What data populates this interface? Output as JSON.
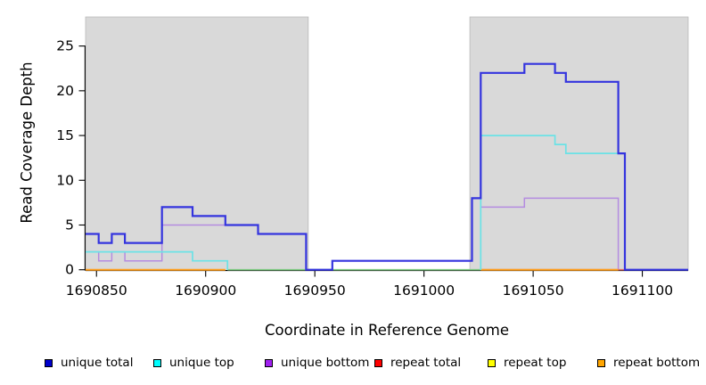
{
  "chart_data": {
    "type": "line",
    "subtype": "step",
    "title": "",
    "xlabel": "Coordinate in Reference Genome",
    "ylabel": "Read Coverage Depth",
    "xlim": [
      1690845,
      1691121
    ],
    "ylim": [
      0,
      28.25
    ],
    "grid": false,
    "x_ticks": [
      1690850,
      1690900,
      1690950,
      1691000,
      1691050,
      1691100
    ],
    "x_tick_labels": [
      "1690850",
      "1690900",
      "1690950",
      "1691000",
      "1691050",
      "1691100"
    ],
    "y_ticks": [
      0,
      5,
      10,
      15,
      20,
      25
    ],
    "y_tick_labels": [
      "0",
      "5",
      "10",
      "15",
      "20",
      "25"
    ],
    "shaded_regions": [
      {
        "name": "left-shaded-region",
        "x0": 1690845,
        "x1": 1690947,
        "fill": "#d9d9d9"
      },
      {
        "name": "right-shaded-region",
        "x0": 1691021,
        "x1": 1691121,
        "fill": "#d9d9d9"
      }
    ],
    "series": [
      {
        "name": "unique-bottom",
        "legend_label": "unique bottom",
        "color": "#A020F0",
        "line_color": "#B48CE0",
        "line_width": 1.5,
        "segments": [
          {
            "steps": [
              [
                1690845,
                2
              ],
              [
                1690851,
                1
              ],
              [
                1690857,
                2
              ],
              [
                1690863,
                1
              ],
              [
                1690880,
                5
              ],
              [
                1690924,
                4
              ],
              [
                1690946,
                0
              ],
              [
                1690958,
                1
              ],
              [
                1691022,
                8
              ],
              [
                1691026,
                7
              ],
              [
                1691046,
                8
              ],
              [
                1691089,
                0
              ]
            ],
            "end": 1691121
          }
        ]
      },
      {
        "name": "repeat-top",
        "legend_label": "repeat top",
        "color": "#FFFF00",
        "line_color": "#7CC87F",
        "line_width": 1.6,
        "segments": [
          {
            "steps": [
              [
                1690910,
                0
              ]
            ],
            "end": 1691026
          }
        ]
      },
      {
        "name": "repeat-total",
        "legend_label": "repeat total",
        "color": "#FF0000",
        "line_color": "#E06868",
        "line_width": 1.6,
        "segments": [
          {
            "steps": [
              [
                1691026,
                0
              ]
            ],
            "end": 1691092
          }
        ]
      },
      {
        "name": "repeat-bottom",
        "legend_label": "repeat bottom",
        "color": "#FFA500",
        "line_color": "#FF9E1B",
        "line_width": 2,
        "segments": [
          {
            "steps": [
              [
                1690845,
                0
              ]
            ],
            "end": 1690909
          },
          {
            "steps": [
              [
                1691026,
                0
              ]
            ],
            "end": 1691089
          }
        ]
      },
      {
        "name": "unique-top",
        "legend_label": "unique top",
        "color": "#00FFFF",
        "line_color": "#6BE2E6",
        "line_width": 1.7,
        "segments": [
          {
            "steps": [
              [
                1690845,
                2
              ],
              [
                1690894,
                1
              ],
              [
                1690910,
                0
              ]
            ],
            "end": 1690910
          },
          {
            "steps": [
              [
                1691026,
                0
              ],
              [
                1691026,
                15
              ],
              [
                1691060,
                14
              ],
              [
                1691065,
                13
              ],
              [
                1691092,
                0
              ]
            ],
            "end": 1691092
          }
        ]
      },
      {
        "name": "unique-total",
        "legend_label": "unique total",
        "color": "#0000CC",
        "line_color": "#3434DE",
        "line_width": 2.2,
        "segments": [
          {
            "steps": [
              [
                1690845,
                4
              ],
              [
                1690851,
                3
              ],
              [
                1690857,
                4
              ],
              [
                1690863,
                3
              ],
              [
                1690880,
                7
              ],
              [
                1690894,
                6
              ],
              [
                1690909,
                5
              ],
              [
                1690924,
                4
              ],
              [
                1690946,
                0
              ],
              [
                1690958,
                1
              ],
              [
                1691022,
                8
              ],
              [
                1691026,
                22
              ],
              [
                1691046,
                23
              ],
              [
                1691060,
                22
              ],
              [
                1691065,
                21
              ],
              [
                1691089,
                13
              ],
              [
                1691092,
                0
              ]
            ],
            "end": 1691121
          }
        ]
      }
    ],
    "legend": [
      {
        "label": "unique total",
        "color": "#0000CC"
      },
      {
        "label": "unique top",
        "color": "#00FFFF"
      },
      {
        "label": "unique bottom",
        "color": "#A020F0"
      },
      {
        "label": "repeat total",
        "color": "#FF0000"
      },
      {
        "label": "repeat top",
        "color": "#FFFF00"
      },
      {
        "label": "repeat bottom",
        "color": "#FFA500"
      }
    ],
    "legend_position": "bottom"
  }
}
